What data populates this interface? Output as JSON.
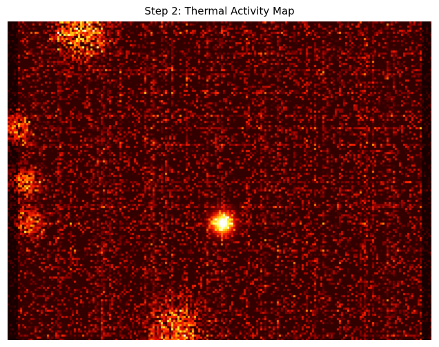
{
  "chart_data": {
    "type": "heatmap",
    "title": "Step 2: Thermal Activity Map",
    "xlabel": "",
    "ylabel": "",
    "axes_visible": false,
    "grid": false,
    "legend": "none",
    "colormap": "hot",
    "colormap_stops": [
      "#0a0000",
      "#8b0000",
      "#ff2000",
      "#ffa500",
      "#ffff40",
      "#ffffff"
    ],
    "value_range": [
      0,
      1
    ],
    "background_level": 0.08,
    "noise_level": 0.45,
    "grid_of_rows": 60,
    "grid_of_cols": 80,
    "hotspots": [
      {
        "label": "main-hotspot",
        "x": 0.505,
        "y": 0.63,
        "peak": 1.0,
        "radius": 0.018
      },
      {
        "label": "top-left-cluster",
        "x": 0.17,
        "y": 0.03,
        "peak": 0.55,
        "radius": 0.05
      },
      {
        "label": "left-edge-cluster-1",
        "x": 0.02,
        "y": 0.33,
        "peak": 0.45,
        "radius": 0.03
      },
      {
        "label": "left-edge-cluster-2",
        "x": 0.04,
        "y": 0.5,
        "peak": 0.4,
        "radius": 0.03
      },
      {
        "label": "left-edge-cluster-3",
        "x": 0.05,
        "y": 0.63,
        "peak": 0.38,
        "radius": 0.03
      },
      {
        "label": "bottom-band",
        "x": 0.4,
        "y": 0.97,
        "peak": 0.4,
        "radius": 0.06
      }
    ]
  }
}
